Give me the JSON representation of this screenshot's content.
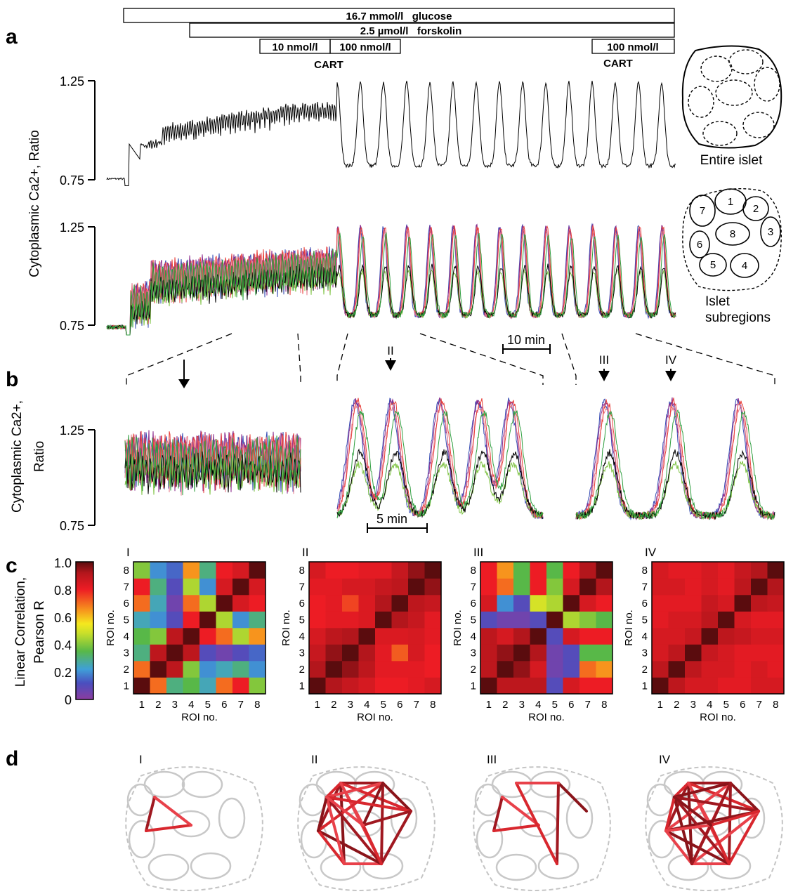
{
  "panels": {
    "a": "a",
    "b": "b",
    "c": "c",
    "d": "d"
  },
  "treatments": {
    "glucose": "16.7 mmol/l   glucose",
    "forskolin": "2.5 µmol/l   forskolin",
    "cart_10": "10 nmol/l",
    "cart_100": "100 nmol/l",
    "cart_100_late": "100 nmol/l",
    "cart_label": "CART",
    "cart_label_late": "CART"
  },
  "axis_a": {
    "ylabel": "Cytoplasmic Ca2+, Ratio",
    "ticks_top": [
      "1.25",
      "0.75"
    ],
    "ticks_bottom": [
      "1.25",
      "0.75"
    ],
    "scalebar": "10 min"
  },
  "insets": {
    "entire_label": "Entire islet",
    "sub_label_1": "Islet",
    "sub_label_2": "subregions",
    "roi_numbers": [
      "1",
      "2",
      "3",
      "4",
      "5",
      "6",
      "7",
      "8"
    ]
  },
  "axis_b": {
    "ylabel_1": "Cytoplasmic Ca2+,",
    "ylabel_2": "Ratio",
    "ticks": [
      "1.25",
      "0.75"
    ],
    "scalebar": "5 min",
    "markers": [
      "I",
      "II",
      "III",
      "IV"
    ]
  },
  "colorbar": {
    "label_1": "Linear Correlation,",
    "label_2": "Pearson R",
    "ticks": [
      "1.0",
      "0.8",
      "0.6",
      "0.4",
      "0.2",
      "0"
    ]
  },
  "heatmap_axes": {
    "x_label": "ROI no.",
    "y_label": "ROI no.",
    "tick_labels": [
      "1",
      "2",
      "3",
      "4",
      "5",
      "6",
      "7",
      "8"
    ]
  },
  "series_colors": [
    "#000000",
    "#e8413c",
    "#2e9e3e",
    "#7dc242",
    "#3a4fb5",
    "#8b2a8c",
    "#e87a8a",
    "#b03030"
  ],
  "chart_data": [
    {
      "type": "heatmap",
      "title": "I",
      "x": [
        1,
        2,
        3,
        4,
        5,
        6,
        7,
        8
      ],
      "y": [
        1,
        2,
        3,
        4,
        5,
        6,
        7,
        8
      ],
      "values": [
        [
          1.0,
          0.7,
          0.3,
          0.35,
          0.25,
          0.7,
          0.8,
          0.4
        ],
        [
          0.7,
          1.0,
          0.9,
          0.4,
          0.2,
          0.25,
          0.3,
          0.2
        ],
        [
          0.3,
          0.9,
          1.0,
          0.9,
          0.1,
          0.05,
          0.1,
          0.15
        ],
        [
          0.35,
          0.4,
          0.9,
          1.0,
          0.8,
          0.7,
          0.45,
          0.65
        ],
        [
          0.25,
          0.2,
          0.1,
          0.8,
          1.0,
          0.45,
          0.2,
          0.3
        ],
        [
          0.7,
          0.25,
          0.05,
          0.7,
          0.45,
          1.0,
          0.85,
          0.8
        ],
        [
          0.8,
          0.3,
          0.1,
          0.45,
          0.2,
          0.85,
          1.0,
          0.85
        ],
        [
          0.4,
          0.2,
          0.15,
          0.65,
          0.3,
          0.8,
          0.85,
          1.0
        ]
      ]
    },
    {
      "type": "heatmap",
      "title": "II",
      "x": [
        1,
        2,
        3,
        4,
        5,
        6,
        7,
        8
      ],
      "y": [
        1,
        2,
        3,
        4,
        5,
        6,
        7,
        8
      ],
      "values": [
        [
          1.0,
          0.92,
          0.88,
          0.85,
          0.8,
          0.8,
          0.82,
          0.85
        ],
        [
          0.92,
          1.0,
          0.95,
          0.9,
          0.82,
          0.82,
          0.82,
          0.8
        ],
        [
          0.88,
          0.95,
          1.0,
          0.92,
          0.82,
          0.72,
          0.85,
          0.8
        ],
        [
          0.85,
          0.9,
          0.92,
          1.0,
          0.84,
          0.84,
          0.85,
          0.82
        ],
        [
          0.8,
          0.82,
          0.82,
          0.84,
          1.0,
          0.92,
          0.88,
          0.82
        ],
        [
          0.8,
          0.82,
          0.75,
          0.84,
          0.92,
          1.0,
          0.9,
          0.88
        ],
        [
          0.82,
          0.82,
          0.85,
          0.85,
          0.88,
          0.9,
          1.0,
          0.95
        ],
        [
          0.85,
          0.8,
          0.8,
          0.82,
          0.82,
          0.88,
          0.95,
          1.0
        ]
      ]
    },
    {
      "type": "heatmap",
      "title": "III",
      "x": [
        1,
        2,
        3,
        4,
        5,
        6,
        7,
        8
      ],
      "y": [
        1,
        2,
        3,
        4,
        5,
        6,
        7,
        8
      ],
      "values": [
        [
          1.0,
          0.9,
          0.9,
          0.9,
          0.1,
          0.85,
          0.8,
          0.8
        ],
        [
          0.9,
          1.0,
          0.95,
          0.85,
          0.05,
          0.1,
          0.7,
          0.65
        ],
        [
          0.9,
          0.95,
          1.0,
          0.92,
          0.05,
          0.1,
          0.35,
          0.35
        ],
        [
          0.9,
          0.85,
          0.92,
          1.0,
          0.1,
          0.85,
          0.8,
          0.8
        ],
        [
          0.1,
          0.05,
          0.05,
          0.1,
          1.0,
          0.45,
          0.4,
          0.35
        ],
        [
          0.85,
          0.2,
          0.1,
          0.5,
          0.45,
          1.0,
          0.85,
          0.8
        ],
        [
          0.8,
          0.7,
          0.35,
          0.8,
          0.4,
          0.85,
          1.0,
          0.92
        ],
        [
          0.8,
          0.65,
          0.35,
          0.8,
          0.35,
          0.8,
          0.92,
          1.0
        ]
      ]
    },
    {
      "type": "heatmap",
      "title": "IV",
      "x": [
        1,
        2,
        3,
        4,
        5,
        6,
        7,
        8
      ],
      "y": [
        1,
        2,
        3,
        4,
        5,
        6,
        7,
        8
      ],
      "values": [
        [
          1.0,
          0.9,
          0.85,
          0.85,
          0.82,
          0.82,
          0.85,
          0.85
        ],
        [
          0.9,
          1.0,
          0.9,
          0.85,
          0.85,
          0.82,
          0.85,
          0.82
        ],
        [
          0.85,
          0.9,
          1.0,
          0.88,
          0.85,
          0.82,
          0.82,
          0.82
        ],
        [
          0.85,
          0.85,
          0.88,
          1.0,
          0.9,
          0.88,
          0.85,
          0.85
        ],
        [
          0.82,
          0.85,
          0.85,
          0.9,
          1.0,
          0.85,
          0.82,
          0.82
        ],
        [
          0.82,
          0.82,
          0.82,
          0.88,
          0.85,
          1.0,
          0.9,
          0.88
        ],
        [
          0.85,
          0.85,
          0.82,
          0.85,
          0.82,
          0.9,
          1.0,
          0.92
        ],
        [
          0.85,
          0.82,
          0.82,
          0.85,
          0.82,
          0.88,
          0.92,
          1.0
        ]
      ]
    }
  ],
  "network_titles": [
    "I",
    "II",
    "III",
    "IV"
  ]
}
